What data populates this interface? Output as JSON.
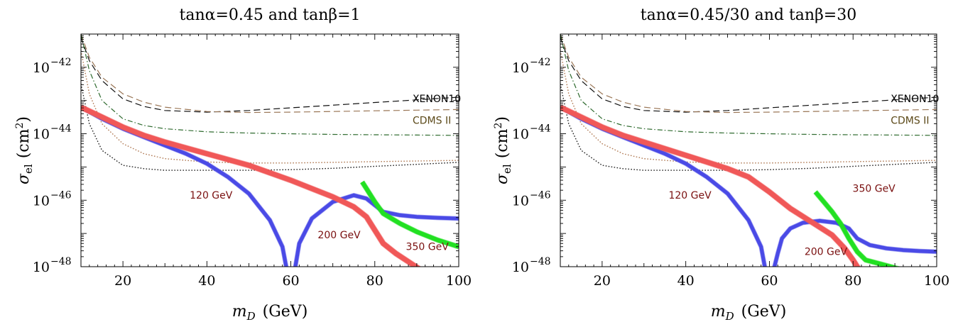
{
  "colors": {
    "frame": "#000000",
    "limit_xenon": "#111111",
    "limit_cdms": "#9a7656",
    "proj_dashdot": "#2f6b2f",
    "proj_dot_brown": "#b07a54",
    "proj_dot_black": "#222222",
    "band_120": "#4a4ae6",
    "band_200": "#f05858",
    "band_350": "#22e022",
    "mass_label": "#7a1010",
    "xenon_label": "#000000",
    "cdms_label": "#5c4a1a"
  },
  "chart_data": [
    {
      "type": "line",
      "title": "tanα=0.45  and  tanβ=1",
      "xlabel_main": "m",
      "xlabel_sub": "D",
      "xlabel_unit": "(GeV)",
      "ylabel_main": "σ",
      "ylabel_sub": "el",
      "ylabel_unit": "(cm",
      "ylabel_sup": "2",
      "ylabel_close": ")",
      "xlim": [
        10,
        100
      ],
      "ylim_log10": [
        -48,
        -41
      ],
      "y_scale": "log",
      "xticks": [
        20,
        40,
        60,
        80,
        100
      ],
      "xtick_labels": [
        "20",
        "40",
        "60",
        "80",
        "100"
      ],
      "yticks_log10": [
        -48,
        -46,
        -44,
        -42
      ],
      "ytick_base": "10",
      "ytick_exponents": [
        "−48",
        "−46",
        "−44",
        "−42"
      ],
      "series": [
        {
          "key": "xenon10",
          "style": "dashed",
          "color": "#111111",
          "band": false,
          "x": [
            10,
            12,
            15,
            20,
            25,
            30,
            40,
            50,
            60,
            70,
            80,
            90,
            100
          ],
          "y_log10": [
            -41.1,
            -41.8,
            -42.4,
            -42.95,
            -43.18,
            -43.3,
            -43.35,
            -43.3,
            -43.22,
            -43.14,
            -43.06,
            -42.98,
            -42.9
          ]
        },
        {
          "key": "cdms2",
          "style": "dashed",
          "color": "#9a7656",
          "band": false,
          "x": [
            10,
            12,
            15,
            20,
            25,
            30,
            40,
            50,
            60,
            70,
            80,
            90,
            100
          ],
          "y_log10": [
            -41.0,
            -41.7,
            -42.3,
            -42.8,
            -43.05,
            -43.2,
            -43.33,
            -43.36,
            -43.35,
            -43.33,
            -43.31,
            -43.29,
            -43.27
          ]
        },
        {
          "key": "proj-dashdot",
          "style": "dashdot",
          "color": "#2f6b2f",
          "band": false,
          "x": [
            10,
            12,
            15,
            20,
            25,
            30,
            40,
            50,
            60,
            70,
            80,
            90,
            100
          ],
          "y_log10": [
            -41.0,
            -42.1,
            -43.0,
            -43.55,
            -43.75,
            -43.85,
            -43.94,
            -43.98,
            -44.0,
            -44.02,
            -44.03,
            -44.04,
            -44.05
          ]
        },
        {
          "key": "proj-dot-brown",
          "style": "dotted",
          "color": "#b07a54",
          "band": false,
          "x": [
            10,
            12,
            15,
            20,
            25,
            30,
            40,
            50,
            60,
            70,
            80,
            90,
            100
          ],
          "y_log10": [
            -41.5,
            -42.8,
            -43.7,
            -44.3,
            -44.6,
            -44.75,
            -44.85,
            -44.88,
            -44.88,
            -44.86,
            -44.84,
            -44.82,
            -44.8
          ]
        },
        {
          "key": "proj-dot-black",
          "style": "dotted",
          "color": "#222222",
          "band": false,
          "x": [
            10,
            12,
            15,
            20,
            25,
            30,
            40,
            50,
            60,
            70,
            80,
            90,
            100
          ],
          "y_log10": [
            -42.5,
            -43.7,
            -44.5,
            -44.95,
            -45.05,
            -45.1,
            -45.1,
            -45.1,
            -45.08,
            -45.04,
            -44.98,
            -44.92,
            -44.86
          ]
        },
        {
          "key": "band-120",
          "style": "band",
          "color": "#4a4ae6",
          "band": true,
          "width": 5,
          "x": [
            10,
            15,
            20,
            25,
            30,
            35,
            40,
            45,
            50,
            55,
            58,
            59.2,
            60,
            60.8,
            62,
            65,
            70,
            75,
            78,
            82,
            86,
            90,
            95,
            100
          ],
          "y_log10": [
            -43.2,
            -43.55,
            -43.85,
            -44.1,
            -44.35,
            -44.6,
            -44.9,
            -45.3,
            -45.8,
            -46.6,
            -47.4,
            -48.2,
            -48.6,
            -48.2,
            -47.3,
            -46.55,
            -46.05,
            -45.85,
            -45.95,
            -46.35,
            -46.45,
            -46.5,
            -46.53,
            -46.55
          ]
        },
        {
          "key": "band-200",
          "style": "band",
          "color": "#f05858",
          "band": true,
          "width": 7,
          "x": [
            10,
            15,
            20,
            25,
            30,
            40,
            50,
            60,
            65,
            70,
            75,
            78,
            80,
            82,
            85,
            88,
            91
          ],
          "y_log10": [
            -43.2,
            -43.5,
            -43.8,
            -44.05,
            -44.25,
            -44.6,
            -44.95,
            -45.4,
            -45.65,
            -45.9,
            -46.2,
            -46.5,
            -46.9,
            -47.3,
            -47.6,
            -47.85,
            -48.1
          ]
        },
        {
          "key": "band-350",
          "style": "band",
          "color": "#22e022",
          "band": true,
          "width": 6,
          "x": [
            77,
            78,
            80,
            82,
            84,
            86,
            90,
            95,
            100
          ],
          "y_log10": [
            -45.45,
            -45.65,
            -46.05,
            -46.4,
            -46.55,
            -46.7,
            -46.95,
            -47.2,
            -47.4
          ]
        }
      ],
      "annotations": [
        {
          "key": "xenon10-label",
          "text": "XENON10",
          "x": 89,
          "y_log10": -43.05,
          "color": "#000000",
          "anchor": "start"
        },
        {
          "key": "cdms2-label",
          "text": "CDMS II",
          "x": 89,
          "y_log10": -43.7,
          "color": "#5c4a1a",
          "anchor": "start"
        },
        {
          "key": "mass-120-label",
          "text": "120 GeV",
          "x": 41,
          "y_log10": -45.95,
          "color": "#7a1010",
          "anchor": "middle"
        },
        {
          "key": "mass-200-label",
          "text": "200 GeV",
          "x": 71.5,
          "y_log10": -47.15,
          "color": "#7a1010",
          "anchor": "middle"
        },
        {
          "key": "mass-350-label",
          "text": "350 GeV",
          "x": 92.5,
          "y_log10": -47.5,
          "color": "#7a1010",
          "anchor": "middle"
        }
      ]
    },
    {
      "type": "line",
      "title": "tanα=0.45/30  and  tanβ=30",
      "xlabel_main": "m",
      "xlabel_sub": "D",
      "xlabel_unit": "(GeV)",
      "ylabel_main": "σ",
      "ylabel_sub": "el",
      "ylabel_unit": "(cm",
      "ylabel_sup": "2",
      "ylabel_close": ")",
      "xlim": [
        10,
        100
      ],
      "ylim_log10": [
        -48,
        -41
      ],
      "y_scale": "log",
      "xticks": [
        20,
        40,
        60,
        80,
        100
      ],
      "xtick_labels": [
        "20",
        "40",
        "60",
        "80",
        "100"
      ],
      "yticks_log10": [
        -48,
        -46,
        -44,
        -42
      ],
      "ytick_base": "10",
      "ytick_exponents": [
        "−48",
        "−46",
        "−44",
        "−42"
      ],
      "series": [
        {
          "key": "xenon10",
          "style": "dashed",
          "color": "#111111",
          "band": false,
          "x": [
            10,
            12,
            15,
            20,
            25,
            30,
            40,
            50,
            60,
            70,
            80,
            90,
            100
          ],
          "y_log10": [
            -41.1,
            -41.8,
            -42.4,
            -42.95,
            -43.18,
            -43.3,
            -43.35,
            -43.3,
            -43.22,
            -43.14,
            -43.06,
            -42.98,
            -42.9
          ]
        },
        {
          "key": "cdms2",
          "style": "dashed",
          "color": "#9a7656",
          "band": false,
          "x": [
            10,
            12,
            15,
            20,
            25,
            30,
            40,
            50,
            60,
            70,
            80,
            90,
            100
          ],
          "y_log10": [
            -41.0,
            -41.7,
            -42.3,
            -42.8,
            -43.05,
            -43.2,
            -43.33,
            -43.36,
            -43.35,
            -43.33,
            -43.31,
            -43.29,
            -43.27
          ]
        },
        {
          "key": "proj-dashdot",
          "style": "dashdot",
          "color": "#2f6b2f",
          "band": false,
          "x": [
            10,
            12,
            15,
            20,
            25,
            30,
            40,
            50,
            60,
            70,
            80,
            90,
            100
          ],
          "y_log10": [
            -41.0,
            -42.1,
            -43.0,
            -43.55,
            -43.75,
            -43.85,
            -43.94,
            -43.98,
            -44.0,
            -44.02,
            -44.03,
            -44.04,
            -44.05
          ]
        },
        {
          "key": "proj-dot-brown",
          "style": "dotted",
          "color": "#b07a54",
          "band": false,
          "x": [
            10,
            12,
            15,
            20,
            25,
            30,
            40,
            50,
            60,
            70,
            80,
            90,
            100
          ],
          "y_log10": [
            -41.5,
            -42.8,
            -43.7,
            -44.3,
            -44.6,
            -44.75,
            -44.85,
            -44.88,
            -44.88,
            -44.86,
            -44.84,
            -44.82,
            -44.8
          ]
        },
        {
          "key": "proj-dot-black",
          "style": "dotted",
          "color": "#222222",
          "band": false,
          "x": [
            10,
            12,
            15,
            20,
            25,
            30,
            40,
            50,
            60,
            70,
            80,
            90,
            100
          ],
          "y_log10": [
            -42.5,
            -43.7,
            -44.5,
            -44.95,
            -45.05,
            -45.1,
            -45.1,
            -45.1,
            -45.08,
            -45.04,
            -44.98,
            -44.92,
            -44.86
          ]
        },
        {
          "key": "band-120",
          "style": "band",
          "color": "#4a4ae6",
          "band": true,
          "width": 5,
          "x": [
            10,
            15,
            20,
            25,
            30,
            35,
            40,
            45,
            50,
            55,
            58,
            59.2,
            60,
            60.8,
            62,
            63,
            65,
            68,
            72,
            76,
            79,
            81,
            84,
            88,
            92,
            96,
            100
          ],
          "y_log10": [
            -43.2,
            -43.55,
            -43.85,
            -44.1,
            -44.35,
            -44.6,
            -44.9,
            -45.3,
            -45.8,
            -46.6,
            -47.4,
            -48.2,
            -48.6,
            -48.2,
            -47.6,
            -47.15,
            -46.85,
            -46.68,
            -46.62,
            -46.68,
            -46.85,
            -47.15,
            -47.35,
            -47.45,
            -47.5,
            -47.53,
            -47.55
          ]
        },
        {
          "key": "band-200",
          "style": "band",
          "color": "#f05858",
          "band": true,
          "width": 7,
          "x": [
            10,
            15,
            20,
            25,
            30,
            40,
            50,
            55,
            60,
            65,
            70,
            75,
            78,
            80,
            82
          ],
          "y_log10": [
            -43.2,
            -43.5,
            -43.8,
            -44.05,
            -44.25,
            -44.65,
            -45.05,
            -45.3,
            -45.75,
            -46.25,
            -46.65,
            -47.05,
            -47.45,
            -47.8,
            -48.2
          ]
        },
        {
          "key": "band-350",
          "style": "band",
          "color": "#22e022",
          "band": true,
          "width": 6,
          "x": [
            71,
            73,
            75,
            77,
            79,
            81,
            83,
            86,
            89,
            92,
            95
          ],
          "y_log10": [
            -45.75,
            -46.05,
            -46.35,
            -46.7,
            -47.15,
            -47.55,
            -47.8,
            -47.9,
            -48.0,
            -48.1,
            -48.2
          ]
        }
      ],
      "annotations": [
        {
          "key": "xenon10-label",
          "text": "XENON10",
          "x": 89,
          "y_log10": -43.05,
          "color": "#000000",
          "anchor": "start"
        },
        {
          "key": "cdms2-label",
          "text": "CDMS II",
          "x": 89,
          "y_log10": -43.7,
          "color": "#5c4a1a",
          "anchor": "start"
        },
        {
          "key": "mass-120-label",
          "text": "120 GeV",
          "x": 41,
          "y_log10": -45.95,
          "color": "#7a1010",
          "anchor": "middle"
        },
        {
          "key": "mass-200-label",
          "text": "200 GeV",
          "x": 73.5,
          "y_log10": -47.65,
          "color": "#7a1010",
          "anchor": "middle"
        },
        {
          "key": "mass-350-label",
          "text": "350 GeV",
          "x": 85,
          "y_log10": -45.75,
          "color": "#7a1010",
          "anchor": "middle"
        }
      ]
    }
  ]
}
